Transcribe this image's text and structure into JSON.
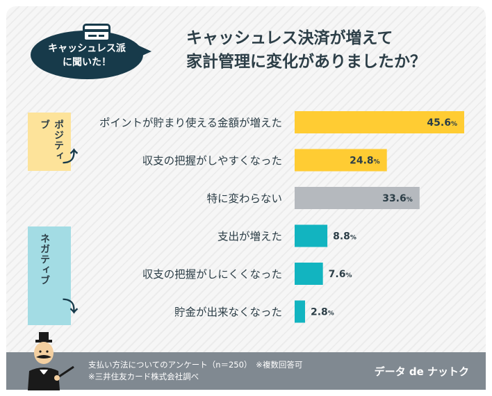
{
  "bubble": {
    "text": "キャッシュレス派\nに聞いた！"
  },
  "title": "キャッシュレス決済が増えて\n家計管理に変化がありましたか？",
  "groups": {
    "positive": "ポジティブ",
    "negative": "ネガティブ"
  },
  "colors": {
    "positive": "#ffcc33",
    "neutral": "#b5b9be",
    "negative": "#12b4c0",
    "navy": "#173a4a"
  },
  "chart_data": {
    "type": "bar",
    "orientation": "horizontal",
    "categories": [
      "ポイントが貯まり使える金額が増えた",
      "収支の把握がしやすくなった",
      "特に変わらない",
      "支出が増えた",
      "収支の把握がしにくくなった",
      "貯金が出来なくなった"
    ],
    "values": [
      45.6,
      24.8,
      33.6,
      8.8,
      7.6,
      2.8
    ],
    "unit": "%",
    "category_group": [
      "positive",
      "positive",
      "neutral",
      "negative",
      "negative",
      "negative"
    ]
  },
  "footer": {
    "note": "支払い方法についてのアンケート（n＝250）　※複数回答可\n※三井住友カード株式会社調べ",
    "brand": "データ de ナットク"
  }
}
